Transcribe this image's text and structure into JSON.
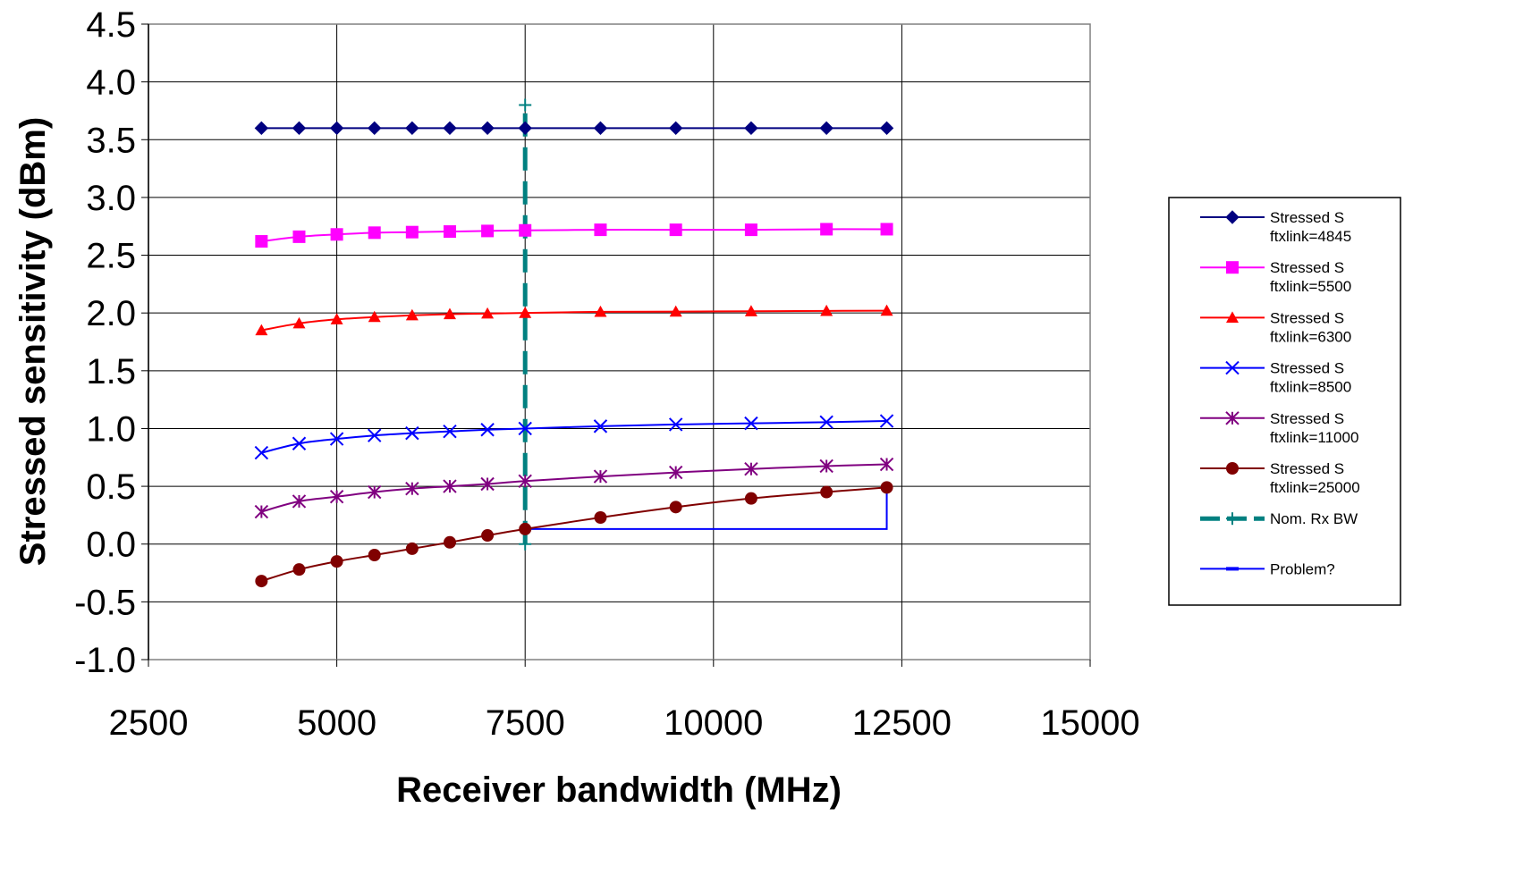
{
  "chart_data": {
    "type": "line",
    "title": "",
    "xlabel": "Receiver bandwidth (MHz)",
    "ylabel": "Stressed sensitivity (dBm)",
    "xlim": [
      2500,
      15000
    ],
    "ylim": [
      -1.0,
      4.5
    ],
    "xticks": [
      2500,
      5000,
      7500,
      10000,
      12500,
      15000
    ],
    "xtick_labels": [
      "2500",
      "5000",
      "7500",
      "10000",
      "12500",
      "15000"
    ],
    "yticks": [
      -1.0,
      -0.5,
      0.0,
      0.5,
      1.0,
      1.5,
      2.0,
      2.5,
      3.0,
      3.5,
      4.0,
      4.5
    ],
    "ytick_labels": [
      "-1.0",
      "-0.5",
      "0.0",
      "0.5",
      "1.0",
      "1.5",
      "2.0",
      "2.5",
      "3.0",
      "3.5",
      "4.0",
      "4.5"
    ],
    "grid": true,
    "legend_position": "right",
    "x": [
      4000,
      4500,
      5000,
      5500,
      6000,
      6500,
      7000,
      7500,
      8500,
      9500,
      10500,
      11500,
      12300
    ],
    "series": [
      {
        "name": "Stressed S ftxlink=4845",
        "legend_lines": [
          "Stressed S",
          "ftxlink=4845"
        ],
        "color": "#000080",
        "marker": "diamond",
        "values": [
          3.6,
          3.6,
          3.6,
          3.6,
          3.6,
          3.6,
          3.6,
          3.6,
          3.6,
          3.6,
          3.6,
          3.6,
          3.6
        ]
      },
      {
        "name": "Stressed S ftxlink=5500",
        "legend_lines": [
          "Stressed S",
          "ftxlink=5500"
        ],
        "color": "#ff00ff",
        "marker": "square",
        "values": [
          2.62,
          2.66,
          2.68,
          2.695,
          2.7,
          2.705,
          2.71,
          2.715,
          2.72,
          2.72,
          2.72,
          2.725,
          2.725
        ]
      },
      {
        "name": "Stressed S ftxlink=6300",
        "legend_lines": [
          "Stressed S",
          "ftxlink=6300"
        ],
        "color": "#ff0000",
        "marker": "triangle",
        "values": [
          1.85,
          1.91,
          1.945,
          1.965,
          1.98,
          1.99,
          1.995,
          2.0,
          2.01,
          2.012,
          2.015,
          2.018,
          2.02
        ]
      },
      {
        "name": "Stressed S ftxlink=8500",
        "legend_lines": [
          "Stressed S",
          "ftxlink=8500"
        ],
        "color": "#0000ff",
        "marker": "x",
        "values": [
          0.79,
          0.87,
          0.91,
          0.94,
          0.96,
          0.975,
          0.99,
          1.0,
          1.02,
          1.035,
          1.045,
          1.055,
          1.065
        ]
      },
      {
        "name": "Stressed S ftxlink=11000",
        "legend_lines": [
          "Stressed S",
          "ftxlink=11000"
        ],
        "color": "#800080",
        "marker": "asterisk",
        "values": [
          0.28,
          0.37,
          0.41,
          0.45,
          0.48,
          0.5,
          0.52,
          0.545,
          0.585,
          0.62,
          0.65,
          0.675,
          0.69
        ]
      },
      {
        "name": "Stressed S ftxlink=25000",
        "legend_lines": [
          "Stressed S",
          "ftxlink=25000"
        ],
        "color": "#800000",
        "marker": "circle",
        "values": [
          -0.32,
          -0.22,
          -0.15,
          -0.095,
          -0.04,
          0.015,
          0.075,
          0.13,
          0.23,
          0.32,
          0.395,
          0.45,
          0.49
        ]
      }
    ],
    "reference_lines": [
      {
        "name": "Nom. Rx BW",
        "legend_lines": [
          "Nom. Rx BW"
        ],
        "color": "#008080",
        "marker": "plus",
        "dashed": true,
        "x": [
          7500,
          7500
        ],
        "y": [
          0.0,
          3.8
        ]
      },
      {
        "name": "Problem?",
        "legend_lines": [
          "Problem?"
        ],
        "color": "#0000ff",
        "marker": "dash",
        "dashed": false,
        "x": [
          7500,
          12300,
          12300
        ],
        "y": [
          0.13,
          0.13,
          0.49
        ]
      }
    ]
  }
}
